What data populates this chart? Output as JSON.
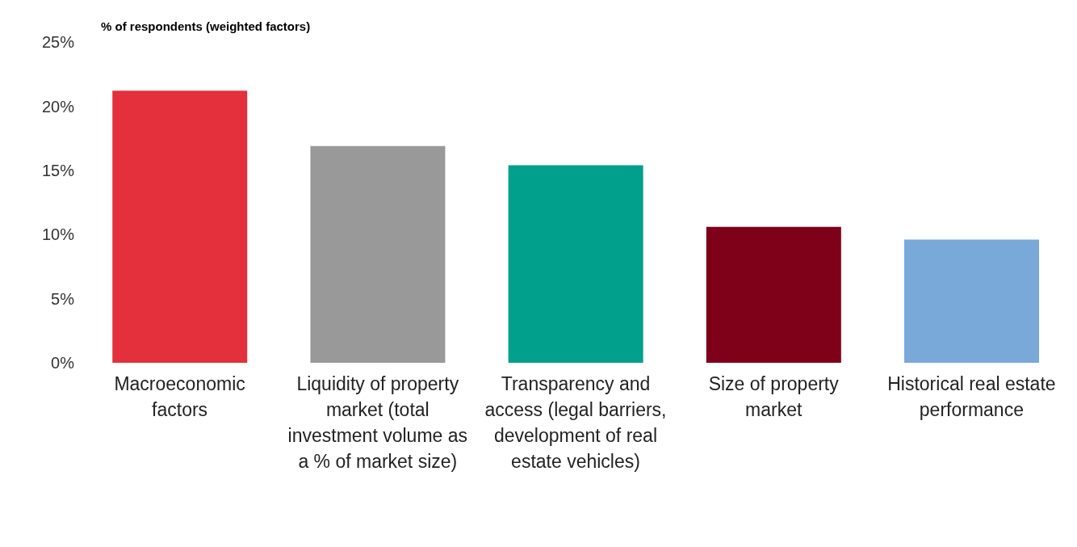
{
  "chart_data": {
    "type": "bar",
    "title": "% of respondents (weighted factors)",
    "categories": [
      "Macroeconomic factors",
      "Liquidity of property market (total investment volume as a % of market size)",
      "Transparency and access (legal barriers, development of real estate vehicles)",
      "Size of property market",
      "Historical real estate performance"
    ],
    "values": [
      21.2,
      16.9,
      15.4,
      10.6,
      9.6
    ],
    "colors": [
      "#e3303c",
      "#999999",
      "#00a08c",
      "#7f0019",
      "#78a9d8"
    ],
    "ylim": [
      0,
      25
    ],
    "yticks": [
      {
        "value": 0,
        "label": "0%"
      },
      {
        "value": 5,
        "label": "5%"
      },
      {
        "value": 10,
        "label": "10%"
      },
      {
        "value": 15,
        "label": "15%"
      },
      {
        "value": 20,
        "label": "20%"
      },
      {
        "value": 25,
        "label": "25%"
      }
    ],
    "grid": false,
    "legend": false
  }
}
